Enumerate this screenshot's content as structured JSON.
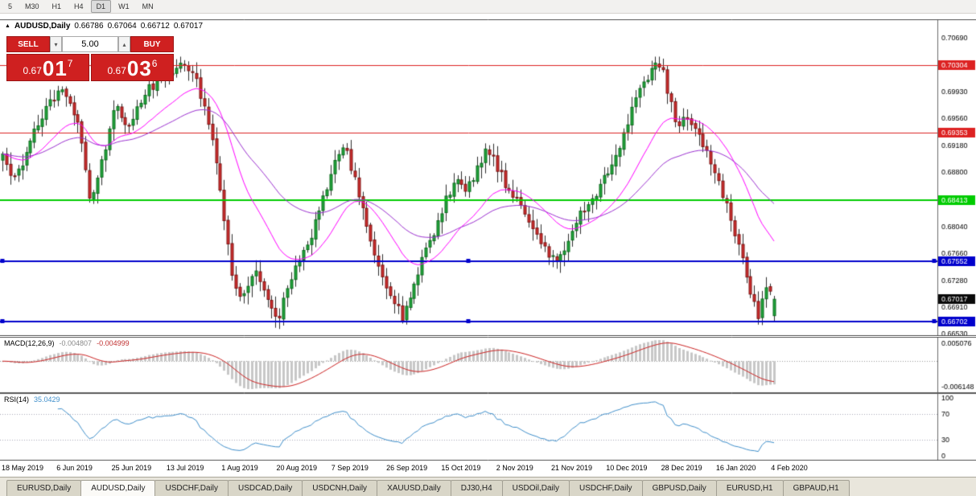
{
  "toolbar": {
    "timeframes": [
      "5",
      "M30",
      "H1",
      "H4",
      "D1",
      "W1",
      "MN"
    ],
    "active": "D1"
  },
  "chart_header": {
    "collapse_icon": "▲",
    "symbol_period": "AUDUSD,Daily",
    "open": "0.66786",
    "high": "0.67064",
    "low": "0.66712",
    "close": "0.67017"
  },
  "one_click": {
    "sell_label": "SELL",
    "buy_label": "BUY",
    "volume": "5.00",
    "down_icon": "▾",
    "up_icon": "▴",
    "sell_price": {
      "base": "0.67",
      "pips": "01",
      "pipette": "7"
    },
    "buy_price": {
      "base": "0.67",
      "pips": "03",
      "pipette": "6"
    }
  },
  "chart_data": {
    "type": "candlestick",
    "symbol": "AUDUSD",
    "timeframe": "Daily",
    "last_ohlc": {
      "open": 0.66786,
      "high": 0.67064,
      "low": 0.66712,
      "close": 0.67017
    },
    "current_price": {
      "value": 0.67017,
      "label": "0.67017",
      "color": "#0a0a0a"
    },
    "y_axis": {
      "min": 0.665,
      "max": 0.7095,
      "tick_labels": [
        "0.70690",
        "0.69930",
        "0.69560",
        "0.69180",
        "0.68800",
        "0.68040",
        "0.67660",
        "0.67280",
        "0.66910",
        "0.66530"
      ]
    },
    "levels": [
      {
        "value": 0.70304,
        "label": "0.70304",
        "color": "#dd2222",
        "width": 1,
        "handles": false
      },
      {
        "value": 0.69353,
        "label": "0.69353",
        "color": "#dd2222",
        "width": 1,
        "handles": false
      },
      {
        "value": 0.68413,
        "label": "0.68413",
        "color": "#00cc00",
        "width": 2,
        "handles": false
      },
      {
        "value": 0.67552,
        "label": "0.67552",
        "color": "#0000cc",
        "width": 2,
        "handles": true
      },
      {
        "value": 0.66702,
        "label": "0.66702",
        "color": "#0000cc",
        "width": 2,
        "handles": true
      }
    ],
    "x_axis": {
      "labels": [
        "18 May 2019",
        "6 Jun 2019",
        "25 Jun 2019",
        "13 Jul 2019",
        "1 Aug 2019",
        "20 Aug 2019",
        "7 Sep 2019",
        "26 Sep 2019",
        "15 Oct 2019",
        "2 Nov 2019",
        "21 Nov 2019",
        "10 Dec 2019",
        "28 Dec 2019",
        "16 Jan 2020",
        "4 Feb 2020"
      ]
    },
    "candle_count": 196,
    "price_path": [
      [
        0.0,
        0.69
      ],
      [
        0.016,
        0.6867
      ],
      [
        0.041,
        0.694
      ],
      [
        0.062,
        0.698
      ],
      [
        0.078,
        0.7
      ],
      [
        0.098,
        0.695
      ],
      [
        0.114,
        0.6838
      ],
      [
        0.13,
        0.69
      ],
      [
        0.145,
        0.6978
      ],
      [
        0.161,
        0.694
      ],
      [
        0.176,
        0.6978
      ],
      [
        0.192,
        0.7
      ],
      [
        0.212,
        0.7015
      ],
      [
        0.233,
        0.7036
      ],
      [
        0.249,
        0.702
      ],
      [
        0.259,
        0.698
      ],
      [
        0.275,
        0.691
      ],
      [
        0.288,
        0.681
      ],
      [
        0.295,
        0.675
      ],
      [
        0.306,
        0.67
      ],
      [
        0.316,
        0.672
      ],
      [
        0.326,
        0.6745
      ],
      [
        0.342,
        0.671
      ],
      [
        0.358,
        0.6668
      ],
      [
        0.368,
        0.672
      ],
      [
        0.383,
        0.6755
      ],
      [
        0.399,
        0.679
      ],
      [
        0.415,
        0.684
      ],
      [
        0.43,
        0.689
      ],
      [
        0.443,
        0.6917
      ],
      [
        0.456,
        0.687
      ],
      [
        0.468,
        0.682
      ],
      [
        0.482,
        0.677
      ],
      [
        0.495,
        0.6725
      ],
      [
        0.508,
        0.67
      ],
      [
        0.518,
        0.6672
      ],
      [
        0.531,
        0.672
      ],
      [
        0.544,
        0.6755
      ],
      [
        0.56,
        0.68
      ],
      [
        0.575,
        0.6845
      ],
      [
        0.589,
        0.687
      ],
      [
        0.601,
        0.6855
      ],
      [
        0.613,
        0.688
      ],
      [
        0.627,
        0.6915
      ],
      [
        0.64,
        0.689
      ],
      [
        0.653,
        0.686
      ],
      [
        0.668,
        0.684
      ],
      [
        0.682,
        0.6815
      ],
      [
        0.694,
        0.679
      ],
      [
        0.707,
        0.6765
      ],
      [
        0.72,
        0.6756
      ],
      [
        0.734,
        0.678
      ],
      [
        0.746,
        0.6815
      ],
      [
        0.76,
        0.684
      ],
      [
        0.772,
        0.6855
      ],
      [
        0.782,
        0.688
      ],
      [
        0.793,
        0.689
      ],
      [
        0.803,
        0.693
      ],
      [
        0.817,
        0.697
      ],
      [
        0.829,
        0.7
      ],
      [
        0.845,
        0.703
      ],
      [
        0.855,
        0.7028
      ],
      [
        0.865,
        0.698
      ],
      [
        0.876,
        0.694
      ],
      [
        0.886,
        0.696
      ],
      [
        0.896,
        0.6945
      ],
      [
        0.907,
        0.692
      ],
      [
        0.917,
        0.69
      ],
      [
        0.927,
        0.6865
      ],
      [
        0.938,
        0.684
      ],
      [
        0.948,
        0.68
      ],
      [
        0.958,
        0.676
      ],
      [
        0.969,
        0.6715
      ],
      [
        0.979,
        0.6678
      ],
      [
        0.986,
        0.67
      ],
      [
        0.993,
        0.6738
      ],
      [
        0.997,
        0.669
      ],
      [
        1.0,
        0.6702
      ]
    ],
    "moving_averages": [
      {
        "period": 21,
        "color": "#ff00ff"
      },
      {
        "period": 50,
        "color": "#9b30d0"
      }
    ],
    "indicators": {
      "macd": {
        "label": "MACD(12,26,9)",
        "fast": 12,
        "slow": 26,
        "signal": 9,
        "value_main": "-0.004807",
        "value_signal": "-0.004999",
        "scale_labels": [
          "0.005076",
          "-0.006148"
        ],
        "histogram_color": "#c7c7c7",
        "signal_color": "#cc2222"
      },
      "rsi": {
        "label": "RSI(14)",
        "period": 14,
        "value": "35.0429",
        "levels": [
          100,
          70,
          30,
          0
        ],
        "line_color": "#3f8fcb"
      }
    },
    "colors": {
      "up": "#21a63c",
      "up_border": "#0e6b1e",
      "down": "#cf2e2e",
      "down_border": "#7c1414",
      "wick": "#2d2d2d",
      "macd_hist": "#c7c7c7",
      "macd_signal": "#cc2222",
      "rsi_line": "#3f8fcb"
    }
  },
  "tabs": {
    "items": [
      "EURUSD,Daily",
      "AUDUSD,Daily",
      "USDCHF,Daily",
      "USDCAD,Daily",
      "USDCNH,Daily",
      "XAUUSD,Daily",
      "DJ30,H4",
      "USDOil,Daily",
      "USDCHF,Daily",
      "GBPUSD,Daily",
      "EURUSD,H1",
      "GBPAUD,H1"
    ],
    "active_index": 1
  }
}
